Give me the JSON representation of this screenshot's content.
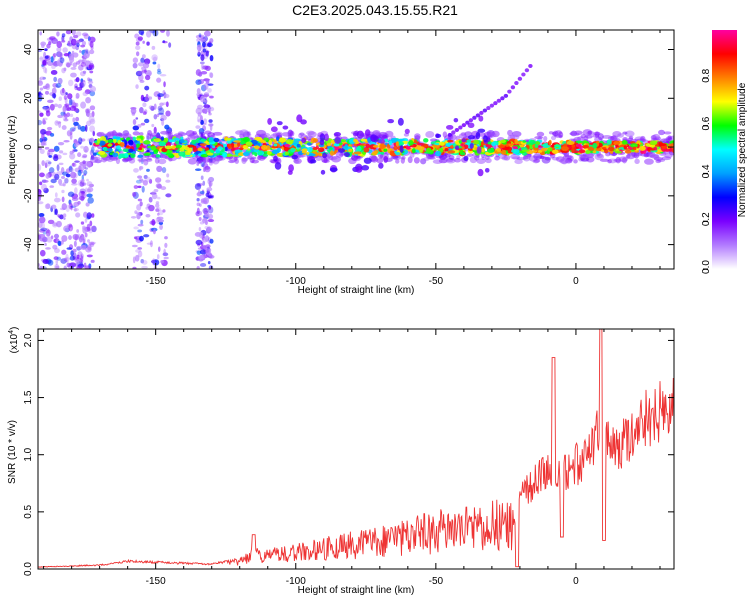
{
  "title": "C2E3.2025.043.15.55.R21",
  "chart_data": [
    {
      "type": "heatmap",
      "xlabel": "Height of straight line (km)",
      "ylabel": "Frequency (Hz)",
      "xlim": [
        -192,
        35
      ],
      "ylim": [
        -50,
        48
      ],
      "xticks": [
        -150,
        -100,
        -50,
        0
      ],
      "yticks": [
        -40,
        -20,
        0,
        20,
        40
      ],
      "colorbar": {
        "label": "Normalized spectral amplitude",
        "range": [
          0,
          1
        ],
        "ticks": [
          "0.0",
          "0.2",
          "0.4",
          "0.6",
          "0.8"
        ],
        "colormap": [
          "#ffffff",
          "#b27bff",
          "#7a00ff",
          "#0000ff",
          "#00a0ff",
          "#00ffff",
          "#00ff00",
          "#ffff00",
          "#ff8000",
          "#ff0000",
          "#ff00a0"
        ]
      },
      "features": {
        "main_band": {
          "freq_center_hz": 0,
          "freq_halfwidth_hz": 4,
          "x_range": [
            -172,
            35
          ]
        },
        "noise_columns_x": [
          [
            -192,
            -172
          ],
          [
            -158,
            -145
          ],
          [
            -135,
            -130
          ]
        ],
        "drift_line": {
          "x": [
            -45,
            -35,
            -25,
            -15
          ],
          "freq_hz": [
            5,
            13,
            21,
            35
          ]
        }
      }
    },
    {
      "type": "line",
      "xlabel": "Height of straight line (km)",
      "ylabel": "SNR (10 * v/v)",
      "yscale_label": "(x10",
      "yscale_exp": "4",
      "xlim": [
        -192,
        35
      ],
      "ylim": [
        0,
        2.1
      ],
      "xticks": [
        -150,
        -100,
        -50,
        0
      ],
      "yticks": [
        "0.0",
        "0.5",
        "1.0",
        "1.5",
        "2.0"
      ],
      "color": "#ee3333",
      "envelope": {
        "x": [
          -192,
          -170,
          -160,
          -130,
          -120,
          -115,
          -110,
          -100,
          -90,
          -80,
          -70,
          -60,
          -50,
          -40,
          -30,
          -25,
          -22,
          -20,
          -15,
          -10,
          -5,
          0,
          5,
          8,
          10,
          15,
          20,
          25,
          30,
          35
        ],
        "y": [
          0.02,
          0.04,
          0.08,
          0.05,
          0.1,
          0.2,
          0.18,
          0.22,
          0.28,
          0.33,
          0.38,
          0.45,
          0.52,
          0.55,
          0.62,
          0.65,
          0.55,
          0.75,
          0.9,
          1.1,
          1.0,
          1.1,
          1.25,
          1.45,
          1.4,
          1.3,
          1.45,
          1.6,
          1.65,
          1.68
        ]
      },
      "peaks": [
        {
          "x": -115,
          "y": 0.3
        },
        {
          "x": -8,
          "y": 1.85
        },
        {
          "x": 9,
          "y": 2.1
        }
      ],
      "dips": [
        {
          "x": -21,
          "y": 0.02
        },
        {
          "x": -5,
          "y": 0.28
        },
        {
          "x": 10,
          "y": 0.25
        }
      ]
    }
  ]
}
